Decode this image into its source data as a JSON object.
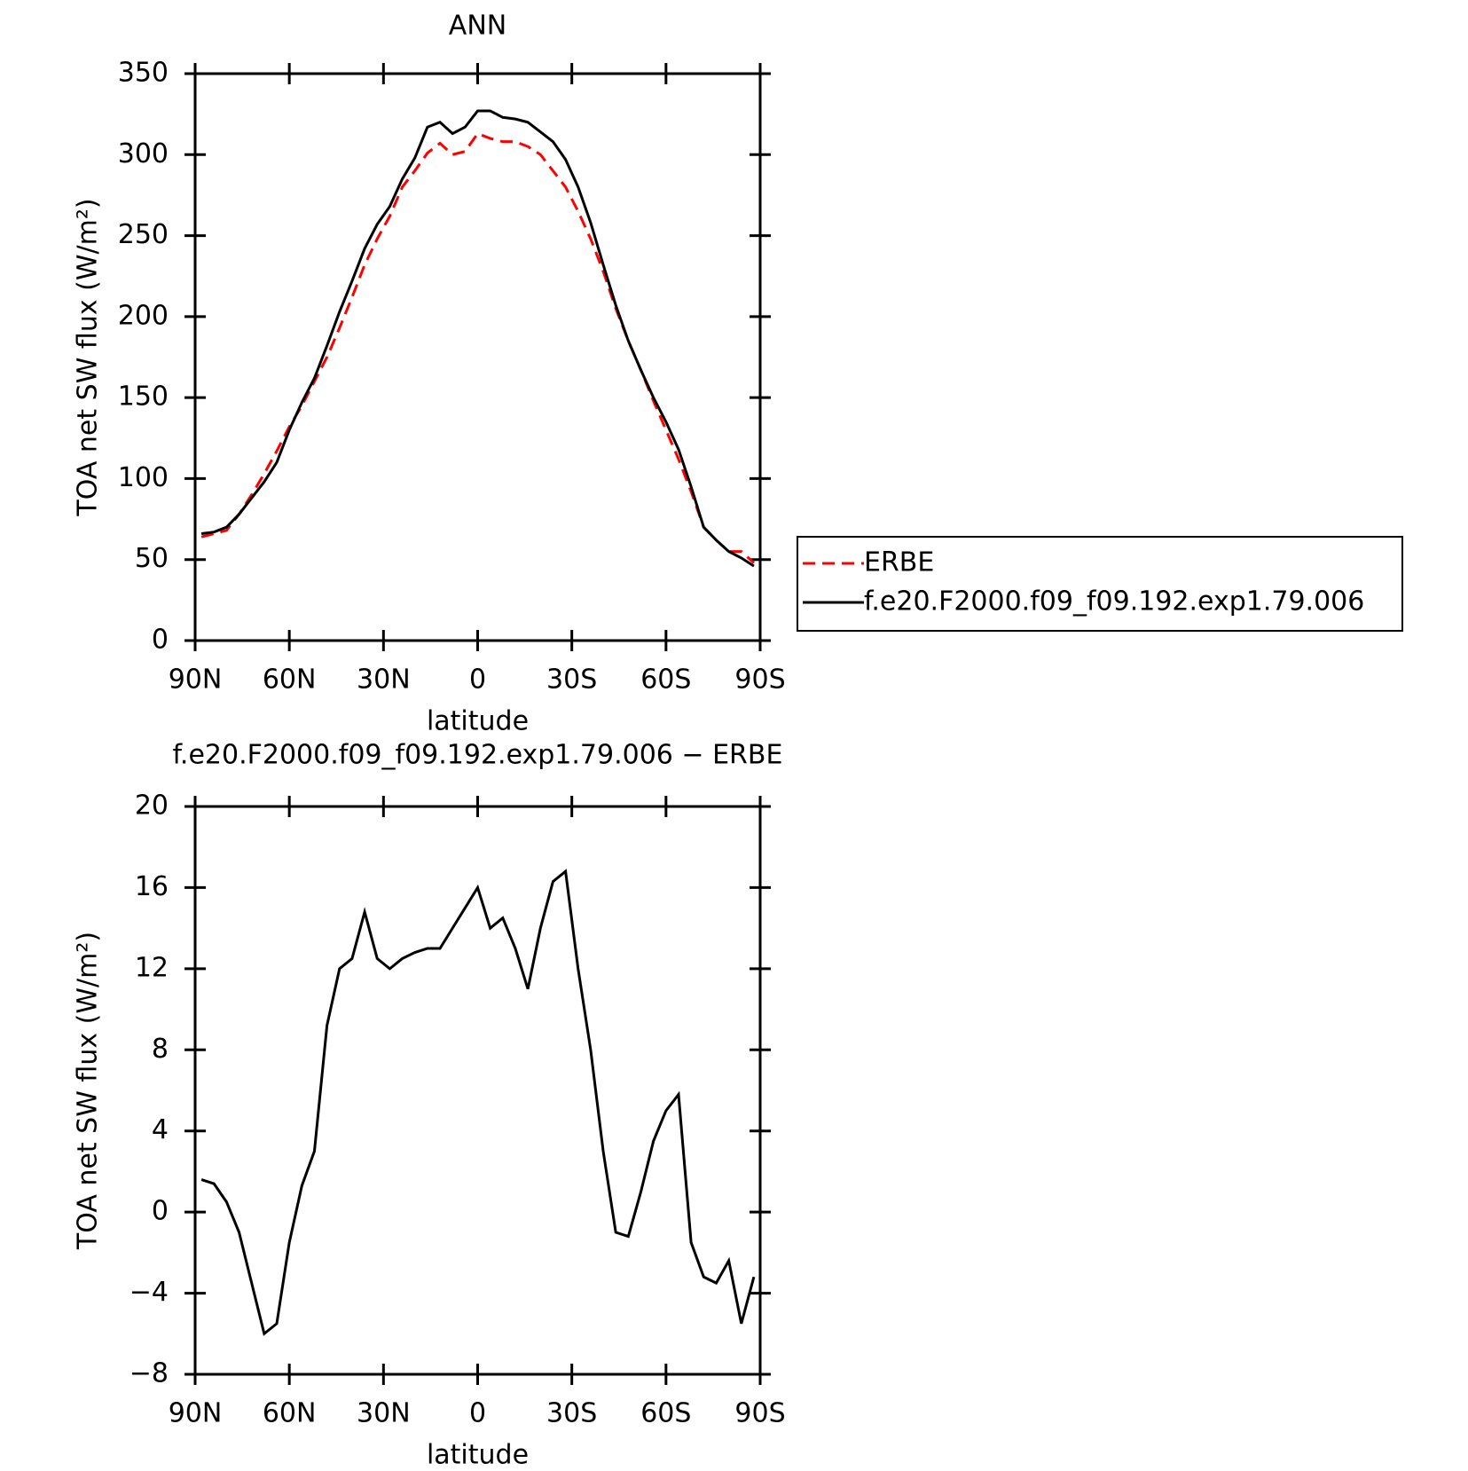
{
  "chart_data": [
    {
      "type": "line",
      "title": "ANN",
      "xlabel": "latitude",
      "ylabel": "TOA net SW flux (W/m²)",
      "x": [
        88,
        84,
        80,
        76,
        72,
        68,
        64,
        60,
        56,
        52,
        48,
        44,
        40,
        36,
        32,
        28,
        24,
        20,
        16,
        12,
        8,
        4,
        0,
        -4,
        -8,
        -12,
        -16,
        -20,
        -24,
        -28,
        -32,
        -36,
        -40,
        -44,
        -48,
        -52,
        -56,
        -60,
        -64,
        -68,
        -72,
        -76,
        -80,
        -84,
        -88
      ],
      "series": [
        {
          "name": "ERBE",
          "color": "#ff0000",
          "dashed": true,
          "values": [
            64,
            66,
            68,
            78,
            90,
            103,
            117,
            132,
            145,
            160,
            175,
            193,
            212,
            232,
            248,
            262,
            280,
            290,
            301,
            307,
            300,
            302,
            313,
            310,
            308,
            308,
            305,
            300,
            290,
            280,
            265,
            248,
            228,
            205,
            185,
            167,
            148,
            130,
            112,
            92,
            70,
            62,
            55,
            55,
            48
          ]
        },
        {
          "name": "f.e20.F2000.f09_f09.192.exp1.79.006",
          "color": "#000000",
          "dashed": false,
          "values": [
            66,
            67,
            70,
            78,
            88,
            98,
            110,
            130,
            147,
            162,
            182,
            203,
            222,
            242,
            257,
            268,
            285,
            298,
            317,
            320,
            313,
            317,
            327,
            327,
            323,
            322,
            320,
            314,
            308,
            297,
            280,
            258,
            232,
            207,
            185,
            167,
            150,
            135,
            118,
            95,
            70,
            62,
            55,
            51,
            46
          ]
        }
      ],
      "xlim": [
        90,
        -90
      ],
      "xticks": [
        {
          "value": 90,
          "label": "90N"
        },
        {
          "value": 60,
          "label": "60N"
        },
        {
          "value": 30,
          "label": "30N"
        },
        0,
        {
          "value": -30,
          "label": "30S"
        },
        {
          "value": -60,
          "label": "60S"
        },
        {
          "value": -90,
          "label": "90S"
        }
      ],
      "ylim": [
        0,
        350
      ],
      "yticks": [
        0,
        50,
        100,
        150,
        200,
        250,
        300,
        350
      ],
      "legend": "right"
    },
    {
      "type": "line",
      "title": "f.e20.F2000.f09_f09.192.exp1.79.006 − ERBE",
      "xlabel": "latitude",
      "ylabel": "TOA net SW flux (W/m²)",
      "x": [
        88,
        84,
        80,
        76,
        72,
        68,
        64,
        60,
        56,
        52,
        48,
        44,
        40,
        36,
        32,
        28,
        24,
        20,
        16,
        12,
        8,
        4,
        0,
        -4,
        -8,
        -12,
        -16,
        -20,
        -24,
        -28,
        -32,
        -36,
        -40,
        -44,
        -48,
        -52,
        -56,
        -60,
        -64,
        -68,
        -72,
        -76,
        -80,
        -84,
        -88
      ],
      "series": [
        {
          "color": "#000000",
          "dashed": false,
          "values": [
            1.6,
            1.4,
            0.5,
            -1.0,
            -3.5,
            -6.0,
            -5.5,
            -1.5,
            1.3,
            3.0,
            9.2,
            12.0,
            12.5,
            14.8,
            12.5,
            12.0,
            12.5,
            12.8,
            13.0,
            13.0,
            14.0,
            15.0,
            16.0,
            14.0,
            14.5,
            13.0,
            11.0,
            14.0,
            16.3,
            16.8,
            12.0,
            8.0,
            3.0,
            -1.0,
            -1.2,
            1.0,
            3.5,
            5.0,
            5.8,
            -1.5,
            -3.2,
            -3.5,
            -2.4,
            -5.5,
            -3.2
          ]
        }
      ],
      "xlim": [
        90,
        -90
      ],
      "xticks": [
        {
          "value": 90,
          "label": "90N"
        },
        {
          "value": 60,
          "label": "60N"
        },
        {
          "value": 30,
          "label": "30N"
        },
        0,
        {
          "value": -30,
          "label": "30S"
        },
        {
          "value": -60,
          "label": "60S"
        },
        {
          "value": -90,
          "label": "90S"
        }
      ],
      "ylim": [
        -8,
        20
      ],
      "yticks": [
        {
          "value": -8,
          "label": "−8"
        },
        {
          "value": -4,
          "label": "−4"
        },
        0,
        4,
        8,
        12,
        16,
        20
      ]
    }
  ]
}
